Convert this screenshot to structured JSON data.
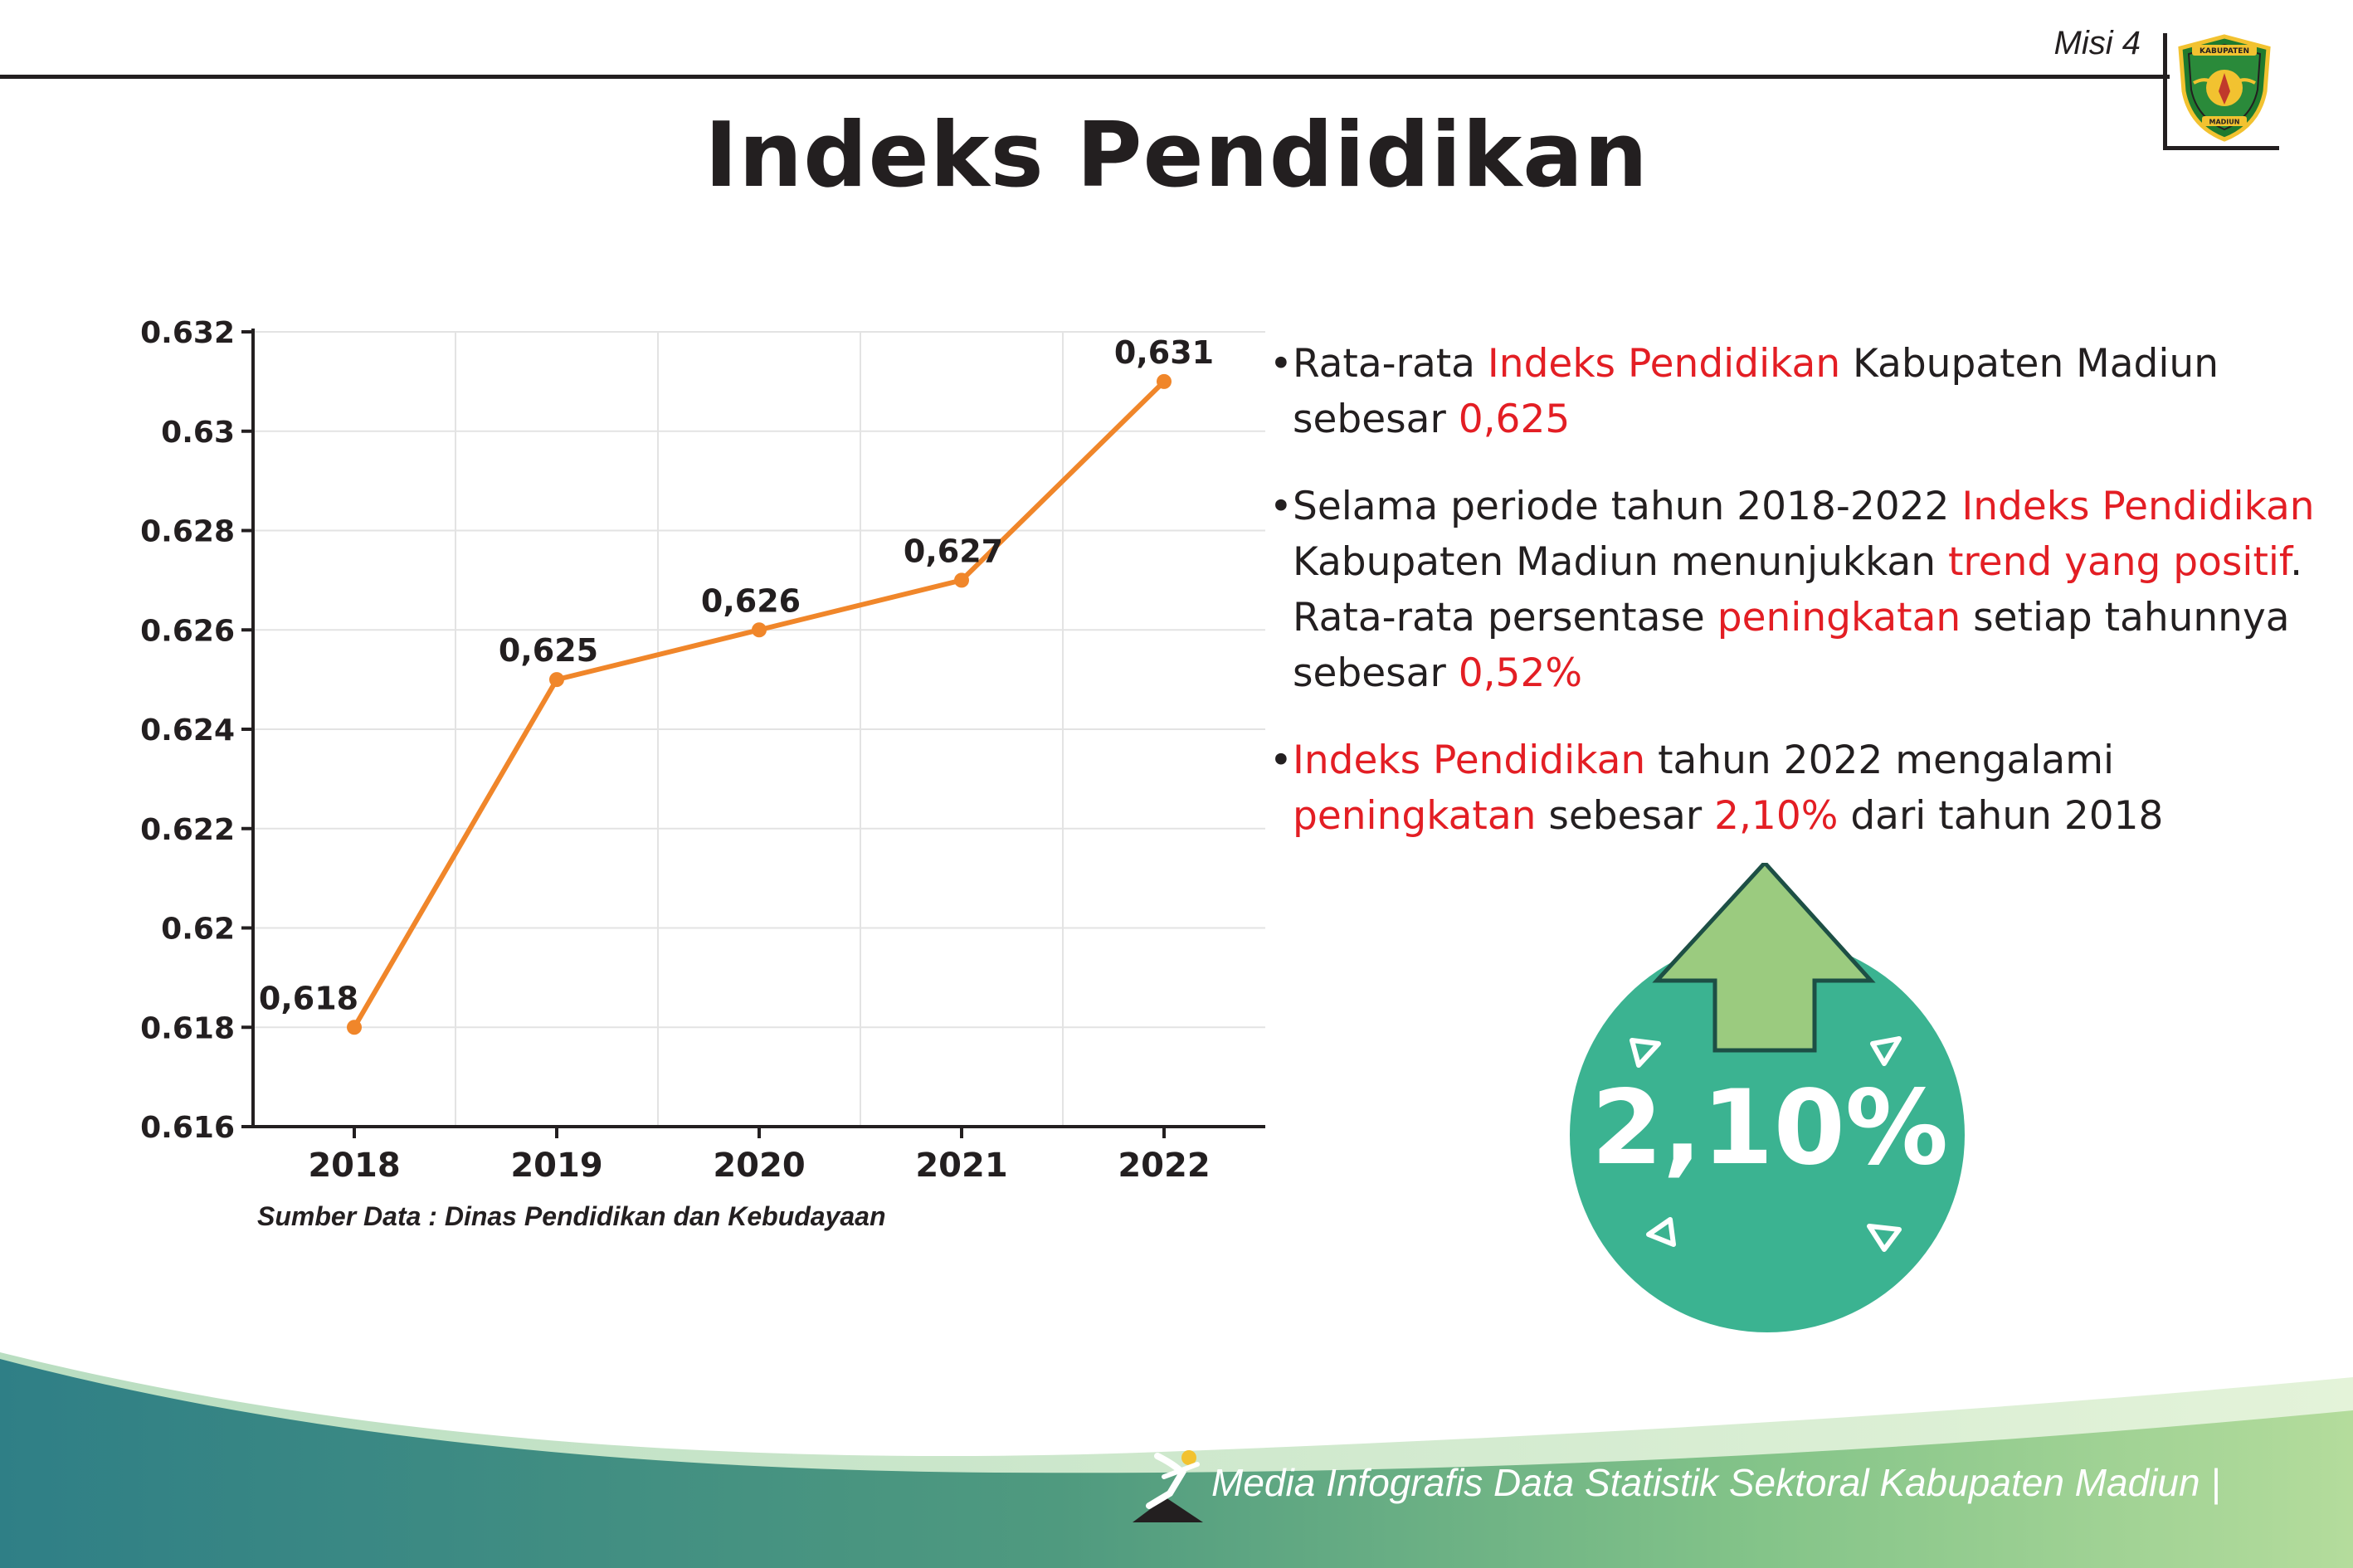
{
  "header": {
    "misi_label": "Misi 4",
    "logo_text_top": "KABUPATEN",
    "logo_text_bottom": "MADIUN"
  },
  "title": "Indeks Pendidikan",
  "chart_data": {
    "type": "line",
    "categories": [
      "2018",
      "2019",
      "2020",
      "2021",
      "2022"
    ],
    "values": [
      0.618,
      0.625,
      0.626,
      0.627,
      0.631
    ],
    "data_labels": [
      "0,618",
      "0,625",
      "0,626",
      "0,627",
      "0,631"
    ],
    "y_ticks": [
      "0.616",
      "0.618",
      "0.62",
      "0.622",
      "0.624",
      "0.626",
      "0.628",
      "0.63",
      "0.632"
    ],
    "ylim": [
      0.616,
      0.632
    ],
    "grid": true,
    "line_color": "#f0862a",
    "title": "",
    "xlabel": "",
    "ylabel": ""
  },
  "source": "Sumber Data : Dinas Pendidikan dan Kebudayaan",
  "bullets": [
    {
      "segments": [
        {
          "text": "Rata-rata ",
          "hl": false
        },
        {
          "text": "Indeks Pendidikan",
          "hl": true
        },
        {
          "text": " Kabupaten Madiun sebesar ",
          "hl": false
        },
        {
          "text": "0,625",
          "hl": true
        }
      ]
    },
    {
      "segments": [
        {
          "text": "Selama periode tahun 2018-2022 ",
          "hl": false
        },
        {
          "text": "Indeks Pendidikan",
          "hl": true
        },
        {
          "text": " Kabupaten Madiun menunjukkan ",
          "hl": false
        },
        {
          "text": "trend yang positif",
          "hl": true
        },
        {
          "text": ". Rata-rata persentase ",
          "hl": false
        },
        {
          "text": "peningkatan",
          "hl": true
        },
        {
          "text": " setiap tahunnya sebesar ",
          "hl": false
        },
        {
          "text": "0,52%",
          "hl": true
        }
      ]
    },
    {
      "segments": [
        {
          "text": "Indeks Pendidikan",
          "hl": true
        },
        {
          "text": " tahun 2022 mengalami ",
          "hl": false
        },
        {
          "text": "peningkatan",
          "hl": true
        },
        {
          "text": " sebesar ",
          "hl": false
        },
        {
          "text": "2,10%",
          "hl": true
        },
        {
          "text": " dari tahun 2018",
          "hl": false
        }
      ]
    }
  ],
  "badge": {
    "value": "2,10%",
    "circle_color": "#3bb391",
    "arrow_color": "#9bcb7f"
  },
  "footer": {
    "text": "Media Infografis Data Statistik Sektoral Kabupaten Madiun |"
  }
}
